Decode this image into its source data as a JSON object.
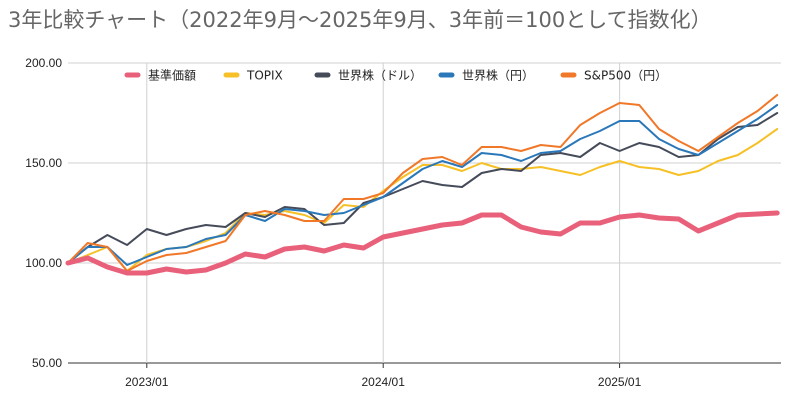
{
  "chart_data": {
    "type": "line",
    "title": "3年比較チャート（2022年9月〜2025年9月、3年前＝100として指数化）",
    "xlabel": "",
    "ylabel": "",
    "ylim": [
      50,
      200
    ],
    "yticks": [
      "50.00",
      "100.00",
      "150.00",
      "200.00"
    ],
    "xticks": [
      "2023/01",
      "2024/01",
      "2025/01"
    ],
    "grid": true,
    "legend_position": "top",
    "x": [
      "2022/09",
      "2022/10",
      "2022/11",
      "2022/12",
      "2023/01",
      "2023/02",
      "2023/03",
      "2023/04",
      "2023/05",
      "2023/06",
      "2023/07",
      "2023/08",
      "2023/09",
      "2023/10",
      "2023/11",
      "2023/12",
      "2024/01",
      "2024/02",
      "2024/03",
      "2024/04",
      "2024/05",
      "2024/06",
      "2024/07",
      "2024/08",
      "2024/09",
      "2024/10",
      "2024/11",
      "2024/12",
      "2025/01",
      "2025/02",
      "2025/03",
      "2025/04",
      "2025/05",
      "2025/06",
      "2025/07",
      "2025/08",
      "2025/09"
    ],
    "series": [
      {
        "name": "基準価額",
        "color": "#e8607a",
        "width": 5,
        "values": [
          100,
          102.5,
          98,
          95,
          95,
          97,
          95.5,
          96.5,
          100,
          104.5,
          103,
          107,
          108,
          106,
          109,
          107.5,
          113,
          115,
          117,
          119,
          120,
          124,
          124,
          118,
          115.5,
          114.5,
          120,
          120,
          123,
          124,
          122.5,
          122,
          116,
          120,
          124,
          124.5,
          125
        ]
      },
      {
        "name": "TOPIX",
        "color": "#f6c026",
        "width": 2,
        "values": [
          100,
          104,
          108,
          96,
          104,
          107,
          108,
          111,
          115,
          125,
          124,
          126,
          124,
          120,
          129,
          128,
          136,
          143,
          149,
          149,
          146,
          150,
          147,
          147,
          148,
          146,
          144,
          148,
          151,
          148,
          147,
          144,
          146,
          151,
          154,
          160,
          167
        ]
      },
      {
        "name": "世界株（ドル）",
        "color": "#464b5a",
        "width": 2,
        "values": [
          100,
          108,
          114,
          109,
          117,
          114,
          117,
          119,
          118,
          125,
          123,
          128,
          127,
          119,
          120,
          130,
          133,
          137,
          141,
          139,
          138,
          145,
          147,
          146,
          154,
          155,
          153,
          160,
          156,
          160,
          158,
          153,
          154,
          162,
          168,
          169,
          175
        ]
      },
      {
        "name": "世界株（円）",
        "color": "#2a78b9",
        "width": 2,
        "values": [
          100,
          108,
          108,
          99,
          103,
          107,
          108,
          112,
          114,
          124,
          121,
          127,
          126,
          124,
          125,
          129,
          133,
          140,
          147,
          151,
          148,
          155,
          154,
          151,
          155,
          156,
          162,
          166,
          171,
          171,
          162,
          157,
          154,
          160,
          166,
          172,
          179
        ]
      },
      {
        "name": "S&P500（円）",
        "color": "#f07828",
        "width": 2,
        "values": [
          100,
          110,
          108,
          96,
          101,
          104,
          105,
          108,
          111,
          124,
          126,
          124,
          121,
          121,
          132,
          132,
          135,
          145,
          152,
          153,
          149,
          158,
          158,
          156,
          159,
          158,
          169,
          175,
          180,
          179,
          167,
          161,
          156,
          163,
          170,
          176,
          184
        ]
      }
    ]
  }
}
